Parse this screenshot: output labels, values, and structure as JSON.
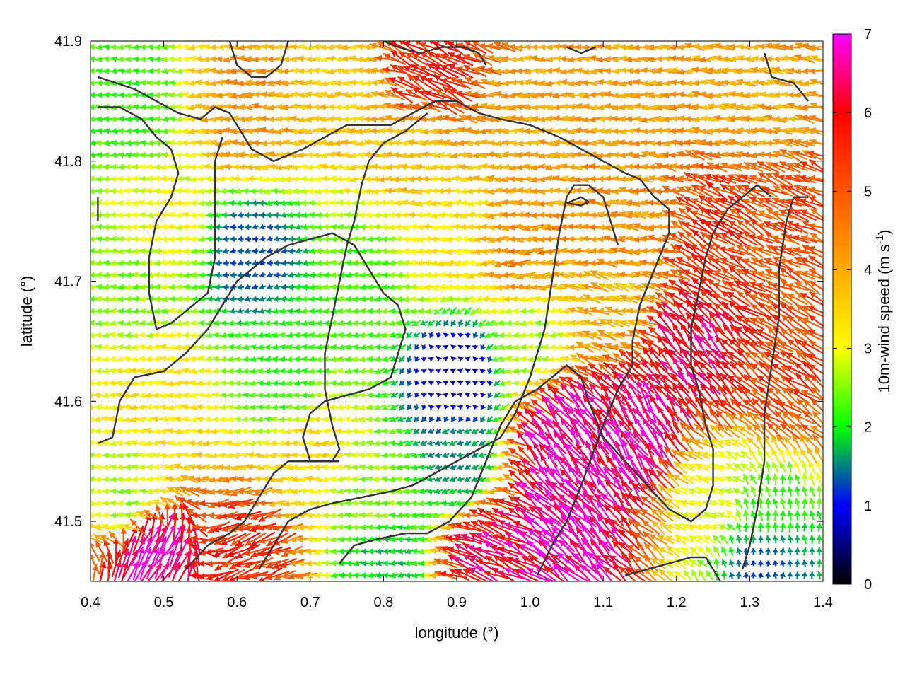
{
  "chart_data": {
    "type": "vector-field",
    "xlabel": "longitude (°)",
    "ylabel": "latitude (°)",
    "xlim": [
      0.4,
      1.4
    ],
    "ylim": [
      41.45,
      41.9
    ],
    "x_ticks": [
      "0.4",
      "0.5",
      "0.6",
      "0.7",
      "0.8",
      "0.9",
      "1.0",
      "1.1",
      "1.2",
      "1.3",
      "1.4"
    ],
    "y_ticks": [
      "41.5",
      "41.6",
      "41.7",
      "41.8",
      "41.9"
    ],
    "x_tick_values": [
      0.4,
      0.5,
      0.6,
      0.7,
      0.8,
      0.9,
      1.0,
      1.1,
      1.2,
      1.3,
      1.4
    ],
    "y_tick_values": [
      41.5,
      41.6,
      41.7,
      41.8,
      41.9
    ],
    "grid": true,
    "colorbar": {
      "label_main": "10m-wind speed (m s",
      "label_sup": "-1",
      "label_end": ")",
      "min": 0,
      "max": 7,
      "ticks": [
        "0",
        "1",
        "2",
        "3",
        "4",
        "5",
        "6",
        "7"
      ],
      "tick_values": [
        0,
        1,
        2,
        3,
        4,
        5,
        6,
        7
      ],
      "stops": [
        {
          "value": 0,
          "color": "#000000"
        },
        {
          "value": 1,
          "color": "#0000ff"
        },
        {
          "value": 2,
          "color": "#00ff00"
        },
        {
          "value": 3,
          "color": "#ffff00"
        },
        {
          "value": 4,
          "color": "#ffaa00"
        },
        {
          "value": 5,
          "color": "#ff5500"
        },
        {
          "value": 6,
          "color": "#ff0000"
        },
        {
          "value": 7,
          "color": "#ff00ff"
        }
      ]
    },
    "wind_grid": {
      "dx": 0.01,
      "dy": 0.01
    },
    "wind_regions": [
      {
        "lon": 0.45,
        "lat": 41.85,
        "speed": 2.2,
        "dir": 180
      },
      {
        "lon": 0.5,
        "lat": 41.75,
        "speed": 3.0,
        "dir": 180
      },
      {
        "lon": 0.45,
        "lat": 41.7,
        "speed": 2.5,
        "dir": 180
      },
      {
        "lon": 0.5,
        "lat": 41.6,
        "speed": 3.3,
        "dir": 180
      },
      {
        "lon": 0.45,
        "lat": 41.52,
        "speed": 2.6,
        "dir": 180
      },
      {
        "lon": 0.48,
        "lat": 41.47,
        "speed": 6.8,
        "dir": 60
      },
      {
        "lon": 0.62,
        "lat": 41.47,
        "speed": 5.5,
        "dir": 200
      },
      {
        "lon": 0.62,
        "lat": 41.84,
        "speed": 4.2,
        "dir": 180
      },
      {
        "lon": 0.75,
        "lat": 41.87,
        "speed": 3.6,
        "dir": 180
      },
      {
        "lon": 0.62,
        "lat": 41.72,
        "speed": 1.3,
        "dir": 190
      },
      {
        "lon": 0.66,
        "lat": 41.62,
        "speed": 2.2,
        "dir": 180
      },
      {
        "lon": 0.7,
        "lat": 41.55,
        "speed": 3.4,
        "dir": 180
      },
      {
        "lon": 0.78,
        "lat": 41.7,
        "speed": 2.3,
        "dir": 180
      },
      {
        "lon": 0.78,
        "lat": 41.52,
        "speed": 2.6,
        "dir": 175
      },
      {
        "lon": 0.8,
        "lat": 41.47,
        "speed": 1.8,
        "dir": 190
      },
      {
        "lon": 0.85,
        "lat": 41.8,
        "speed": 3.7,
        "dir": 180
      },
      {
        "lon": 0.86,
        "lat": 41.88,
        "speed": 5.6,
        "dir": 150
      },
      {
        "lon": 0.88,
        "lat": 41.73,
        "speed": 3.2,
        "dir": 185
      },
      {
        "lon": 0.9,
        "lat": 41.62,
        "speed": 0.6,
        "dir": 270
      },
      {
        "lon": 0.9,
        "lat": 41.55,
        "speed": 1.6,
        "dir": 200
      },
      {
        "lon": 0.95,
        "lat": 41.47,
        "speed": 6.3,
        "dir": 155
      },
      {
        "lon": 1.0,
        "lat": 41.82,
        "speed": 4.0,
        "dir": 180
      },
      {
        "lon": 1.0,
        "lat": 41.72,
        "speed": 4.3,
        "dir": 185
      },
      {
        "lon": 1.0,
        "lat": 41.65,
        "speed": 2.6,
        "dir": 180
      },
      {
        "lon": 1.05,
        "lat": 41.57,
        "speed": 6.8,
        "dir": 125
      },
      {
        "lon": 1.05,
        "lat": 41.5,
        "speed": 6.9,
        "dir": 135
      },
      {
        "lon": 1.15,
        "lat": 41.85,
        "speed": 4.1,
        "dir": 180
      },
      {
        "lon": 1.15,
        "lat": 41.75,
        "speed": 4.3,
        "dir": 175
      },
      {
        "lon": 1.12,
        "lat": 41.68,
        "speed": 4.0,
        "dir": 165
      },
      {
        "lon": 1.15,
        "lat": 41.58,
        "speed": 6.6,
        "dir": 120
      },
      {
        "lon": 1.25,
        "lat": 41.74,
        "speed": 5.4,
        "dir": 150
      },
      {
        "lon": 1.22,
        "lat": 41.64,
        "speed": 6.3,
        "dir": 130
      },
      {
        "lon": 1.25,
        "lat": 41.52,
        "speed": 3.0,
        "dir": 160
      },
      {
        "lon": 1.3,
        "lat": 41.85,
        "speed": 4.0,
        "dir": 175
      },
      {
        "lon": 1.35,
        "lat": 41.75,
        "speed": 5.0,
        "dir": 155
      },
      {
        "lon": 1.35,
        "lat": 41.62,
        "speed": 5.2,
        "dir": 145
      },
      {
        "lon": 1.32,
        "lat": 41.5,
        "speed": 2.2,
        "dir": 95
      },
      {
        "lon": 1.32,
        "lat": 41.47,
        "speed": 1.2,
        "dir": 90
      }
    ],
    "contours": [
      [
        [
          0.41,
          41.87
        ],
        [
          0.46,
          41.86
        ],
        [
          0.49,
          41.85
        ],
        [
          0.52,
          41.84
        ],
        [
          0.55,
          41.835
        ],
        [
          0.57,
          41.845
        ],
        [
          0.59,
          41.84
        ],
        [
          0.62,
          41.81
        ],
        [
          0.65,
          41.8
        ],
        [
          0.69,
          41.81
        ],
        [
          0.72,
          41.82
        ],
        [
          0.75,
          41.83
        ],
        [
          0.78,
          41.83
        ],
        [
          0.81,
          41.83
        ],
        [
          0.84,
          41.84
        ],
        [
          0.87,
          41.85
        ],
        [
          0.9,
          41.85
        ],
        [
          0.93,
          41.84
        ],
        [
          0.96,
          41.835
        ],
        [
          1.0,
          41.83
        ],
        [
          1.04,
          41.82
        ],
        [
          1.07,
          41.81
        ],
        [
          1.1,
          41.8
        ],
        [
          1.13,
          41.79
        ],
        [
          1.15,
          41.785
        ],
        [
          1.17,
          41.77
        ],
        [
          1.19,
          41.76
        ],
        [
          1.19,
          41.74
        ],
        [
          1.17,
          41.71
        ],
        [
          1.15,
          41.68
        ],
        [
          1.14,
          41.65
        ],
        [
          1.14,
          41.63
        ],
        [
          1.12,
          41.61
        ],
        [
          1.1,
          41.58
        ],
        [
          1.07,
          41.53
        ],
        [
          1.05,
          41.5
        ],
        [
          1.03,
          41.48
        ],
        [
          1.01,
          41.455
        ]
      ],
      [
        [
          0.41,
          41.845
        ],
        [
          0.44,
          41.845
        ],
        [
          0.47,
          41.835
        ],
        [
          0.49,
          41.82
        ],
        [
          0.51,
          41.81
        ],
        [
          0.52,
          41.79
        ],
        [
          0.51,
          41.77
        ],
        [
          0.49,
          41.75
        ],
        [
          0.48,
          41.72
        ],
        [
          0.48,
          41.69
        ],
        [
          0.49,
          41.66
        ],
        [
          0.51,
          41.665
        ],
        [
          0.54,
          41.68
        ],
        [
          0.56,
          41.69
        ],
        [
          0.57,
          41.72
        ],
        [
          0.57,
          41.76
        ],
        [
          0.57,
          41.8
        ],
        [
          0.58,
          41.82
        ]
      ],
      [
        [
          0.41,
          41.565
        ],
        [
          0.43,
          41.57
        ],
        [
          0.44,
          41.6
        ],
        [
          0.46,
          41.62
        ],
        [
          0.5,
          41.625
        ],
        [
          0.53,
          41.64
        ],
        [
          0.56,
          41.66
        ],
        [
          0.58,
          41.68
        ],
        [
          0.6,
          41.7
        ],
        [
          0.62,
          41.71
        ],
        [
          0.64,
          41.72
        ],
        [
          0.67,
          41.73
        ],
        [
          0.7,
          41.735
        ],
        [
          0.73,
          41.74
        ],
        [
          0.76,
          41.73
        ],
        [
          0.78,
          41.71
        ],
        [
          0.8,
          41.69
        ],
        [
          0.82,
          41.68
        ],
        [
          0.83,
          41.66
        ],
        [
          0.82,
          41.64
        ],
        [
          0.81,
          41.62
        ],
        [
          0.78,
          41.61
        ],
        [
          0.75,
          41.605
        ],
        [
          0.72,
          41.6
        ],
        [
          0.7,
          41.59
        ],
        [
          0.69,
          41.57
        ],
        [
          0.7,
          41.55
        ],
        [
          0.73,
          41.55
        ],
        [
          0.74,
          41.56
        ],
        [
          0.73,
          41.58
        ],
        [
          0.72,
          41.61
        ],
        [
          0.72,
          41.64
        ],
        [
          0.73,
          41.67
        ],
        [
          0.74,
          41.7
        ],
        [
          0.75,
          41.73
        ],
        [
          0.76,
          41.75
        ],
        [
          0.77,
          41.78
        ],
        [
          0.78,
          41.8
        ],
        [
          0.8,
          41.815
        ],
        [
          0.83,
          41.825
        ],
        [
          0.86,
          41.84
        ]
      ],
      [
        [
          0.53,
          41.46
        ],
        [
          0.56,
          41.48
        ],
        [
          0.59,
          41.49
        ],
        [
          0.61,
          41.5
        ],
        [
          0.63,
          41.52
        ],
        [
          0.65,
          41.54
        ],
        [
          0.67,
          41.55
        ],
        [
          0.69,
          41.55
        ],
        [
          0.71,
          41.55
        ],
        [
          0.74,
          41.55
        ]
      ],
      [
        [
          0.63,
          41.46
        ],
        [
          0.65,
          41.48
        ],
        [
          0.67,
          41.5
        ],
        [
          0.7,
          41.51
        ],
        [
          0.73,
          41.515
        ],
        [
          0.77,
          41.52
        ],
        [
          0.81,
          41.525
        ],
        [
          0.84,
          41.53
        ],
        [
          0.87,
          41.54
        ],
        [
          0.9,
          41.55
        ],
        [
          0.93,
          41.56
        ],
        [
          0.96,
          41.57
        ],
        [
          0.98,
          41.59
        ],
        [
          1.0,
          41.62
        ],
        [
          1.02,
          41.66
        ],
        [
          1.03,
          41.7
        ],
        [
          1.04,
          41.74
        ],
        [
          1.05,
          41.77
        ],
        [
          1.06,
          41.78
        ],
        [
          1.08,
          41.78
        ],
        [
          1.1,
          41.77
        ],
        [
          1.11,
          41.75
        ],
        [
          1.12,
          41.73
        ]
      ],
      [
        [
          0.74,
          41.465
        ],
        [
          0.76,
          41.48
        ],
        [
          0.79,
          41.485
        ],
        [
          0.83,
          41.49
        ],
        [
          0.86,
          41.49
        ],
        [
          0.89,
          41.5
        ],
        [
          0.92,
          41.52
        ],
        [
          0.94,
          41.55
        ],
        [
          0.96,
          41.58
        ],
        [
          0.98,
          41.6
        ],
        [
          1.01,
          41.61
        ],
        [
          1.03,
          41.62
        ],
        [
          1.05,
          41.63
        ],
        [
          1.07,
          41.62
        ],
        [
          1.08,
          41.6
        ],
        [
          1.1,
          41.57
        ],
        [
          1.13,
          41.55
        ],
        [
          1.16,
          41.53
        ],
        [
          1.19,
          41.51
        ],
        [
          1.22,
          41.5
        ],
        [
          1.24,
          41.51
        ],
        [
          1.25,
          41.53
        ],
        [
          1.25,
          41.56
        ],
        [
          1.24,
          41.58
        ],
        [
          1.23,
          41.61
        ],
        [
          1.22,
          41.63
        ],
        [
          1.22,
          41.66
        ],
        [
          1.23,
          41.69
        ],
        [
          1.24,
          41.72
        ],
        [
          1.25,
          41.74
        ],
        [
          1.27,
          41.76
        ],
        [
          1.29,
          41.77
        ],
        [
          1.31,
          41.78
        ],
        [
          1.33,
          41.77
        ]
      ],
      [
        [
          1.29,
          41.46
        ],
        [
          1.3,
          41.48
        ],
        [
          1.31,
          41.51
        ],
        [
          1.32,
          41.55
        ],
        [
          1.32,
          41.59
        ],
        [
          1.33,
          41.63
        ],
        [
          1.34,
          41.67
        ],
        [
          1.34,
          41.71
        ],
        [
          1.35,
          41.75
        ],
        [
          1.36,
          41.77
        ],
        [
          1.38,
          41.77
        ]
      ],
      [
        [
          1.13,
          41.455
        ],
        [
          1.16,
          41.46
        ],
        [
          1.19,
          41.465
        ],
        [
          1.22,
          41.47
        ],
        [
          1.24,
          41.47
        ],
        [
          1.25,
          41.46
        ],
        [
          1.26,
          41.45
        ]
      ],
      [
        [
          0.59,
          41.9
        ],
        [
          0.6,
          41.88
        ],
        [
          0.62,
          41.87
        ],
        [
          0.64,
          41.87
        ],
        [
          0.66,
          41.88
        ],
        [
          0.67,
          41.9
        ]
      ],
      [
        [
          0.8,
          41.9
        ],
        [
          0.82,
          41.895
        ],
        [
          0.85,
          41.89
        ],
        [
          0.88,
          41.895
        ],
        [
          0.91,
          41.895
        ],
        [
          0.93,
          41.89
        ],
        [
          0.94,
          41.88
        ]
      ],
      [
        [
          1.05,
          41.895
        ],
        [
          1.07,
          41.89
        ],
        [
          1.09,
          41.895
        ]
      ],
      [
        [
          1.32,
          41.89
        ],
        [
          1.33,
          41.87
        ],
        [
          1.36,
          41.865
        ],
        [
          1.38,
          41.85
        ]
      ],
      [
        [
          1.05,
          41.765
        ],
        [
          1.07,
          41.763
        ],
        [
          1.08,
          41.766
        ],
        [
          1.07,
          41.77
        ],
        [
          1.05,
          41.765
        ]
      ],
      [
        [
          0.41,
          41.77
        ],
        [
          0.41,
          41.75
        ]
      ]
    ]
  }
}
